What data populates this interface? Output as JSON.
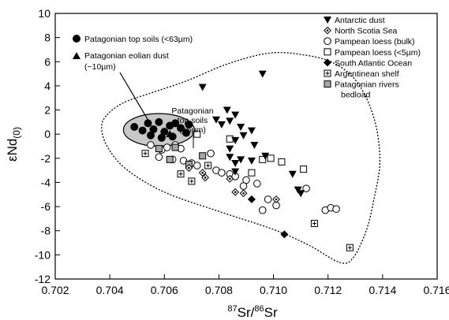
{
  "chart_data": {
    "type": "scatter",
    "title": "",
    "xlabel": "87Sr/86Sr",
    "xlabel_parts": {
      "sup1": "87",
      "base1": "Sr/",
      "sup2": "86",
      "base2": "Sr"
    },
    "ylabel": "εNd(0)",
    "ylabel_parts": {
      "base": "εNd",
      "sub": "(0)"
    },
    "xlim": [
      0.702,
      0.716
    ],
    "ylim": [
      -12,
      10
    ],
    "x_ticks": [
      0.702,
      0.704,
      0.706,
      0.708,
      0.71,
      0.712,
      0.714,
      0.716
    ],
    "x_tick_labels": [
      "0.702",
      "0.704",
      "0.706",
      "0.708",
      "0.710",
      "0.712",
      "0.714",
      "0.716"
    ],
    "y_ticks": [
      10,
      8,
      6,
      4,
      2,
      0,
      -2,
      -4,
      -6,
      -8,
      -10,
      -12
    ],
    "y_tick_labels": [
      "10",
      "8",
      "6",
      "4",
      "2",
      "0",
      "-2",
      "-4",
      "-6",
      "-8",
      "-10",
      "-12"
    ],
    "grid": false,
    "legend_right_position": "top-right",
    "legend_left_position": "top-left",
    "annotations": [
      {
        "id": "patagonian-top-soils-63",
        "text": "Patagonian top soils (<63µm)",
        "marker": "circle-filled"
      },
      {
        "id": "patagonian-eolian-dust",
        "lines": [
          "Patagonian eolian dust",
          "(~10µm)"
        ],
        "marker": "triangle-up"
      },
      {
        "id": "patagonian-top-soils-5",
        "lines": [
          "Patagonian",
          "top soils",
          "(<5µm)"
        ],
        "marker": "none"
      }
    ],
    "series": [
      {
        "name": "Antarctic dust",
        "marker": "triangle-down",
        "points": [
          [
            0.7074,
            3.9
          ],
          [
            0.7079,
            1.2
          ],
          [
            0.7081,
            0.8
          ],
          [
            0.7083,
            2.0
          ],
          [
            0.7084,
            1.1
          ],
          [
            0.7086,
            1.6
          ],
          [
            0.7088,
            0.6
          ],
          [
            0.7089,
            -0.1
          ],
          [
            0.7086,
            -0.5
          ],
          [
            0.7092,
            0.3
          ],
          [
            0.7093,
            -0.9
          ],
          [
            0.7096,
            5.0
          ],
          [
            0.7097,
            -1.8
          ],
          [
            0.7084,
            -1.2
          ],
          [
            0.7084,
            -1.9
          ],
          [
            0.7086,
            -2.4
          ],
          [
            0.7086,
            -3.1
          ],
          [
            0.7092,
            -2.2
          ],
          [
            0.7088,
            -2.1
          ],
          [
            0.7107,
            -3.3
          ],
          [
            0.7109,
            -4.6
          ],
          [
            0.711,
            -4.9
          ]
        ]
      },
      {
        "name": "North Scotia Sea",
        "marker": "diamond-open-dot",
        "points": [
          [
            0.7069,
            -2.8
          ],
          [
            0.7074,
            -3.2
          ],
          [
            0.7075,
            -3.6
          ],
          [
            0.7086,
            -4.8
          ],
          [
            0.7084,
            -3.7
          ],
          [
            0.7089,
            -4.9
          ],
          [
            0.7101,
            -5.4
          ]
        ]
      },
      {
        "name": "Pampean loess (bulk)",
        "marker": "circle-open",
        "points": [
          [
            0.7055,
            -0.9
          ],
          [
            0.7059,
            -1.3
          ],
          [
            0.7061,
            -1.1
          ],
          [
            0.7064,
            -0.9
          ],
          [
            0.7066,
            -1.2
          ],
          [
            0.7058,
            -1.9
          ],
          [
            0.7063,
            -2.1
          ],
          [
            0.7067,
            -2.2
          ],
          [
            0.707,
            -2.4
          ],
          [
            0.7072,
            -2.6
          ],
          [
            0.7077,
            -1.6
          ],
          [
            0.7079,
            -3.0
          ],
          [
            0.7081,
            -3.2
          ],
          [
            0.7084,
            -3.3
          ],
          [
            0.7086,
            -3.5
          ],
          [
            0.709,
            -3.8
          ],
          [
            0.7089,
            -4.3
          ],
          [
            0.7094,
            -4.1
          ],
          [
            0.7096,
            -6.3
          ],
          [
            0.7098,
            -5.4
          ],
          [
            0.7101,
            -5.9
          ],
          [
            0.7112,
            -4.5
          ],
          [
            0.7119,
            -6.3
          ],
          [
            0.7121,
            -6.1
          ],
          [
            0.7123,
            -6.2
          ]
        ]
      },
      {
        "name": "Pampean loess (<5µm)",
        "marker": "square-open",
        "points": [
          [
            0.7072,
            0.0
          ],
          [
            0.7084,
            -0.4
          ],
          [
            0.7092,
            -3.2
          ],
          [
            0.7096,
            -2.1
          ],
          [
            0.7099,
            -2.0
          ],
          [
            0.7103,
            -2.3
          ],
          [
            0.7111,
            -2.9
          ]
        ]
      },
      {
        "name": "South Atlantic Ocean",
        "marker": "diamond-filled",
        "points": [
          [
            0.7092,
            -5.4
          ],
          [
            0.7104,
            -8.3
          ]
        ]
      },
      {
        "name": "Argentinean shelf",
        "marker": "square-cross",
        "points": [
          [
            0.7053,
            -1.6
          ],
          [
            0.7066,
            -3.3
          ],
          [
            0.707,
            -3.9
          ],
          [
            0.7076,
            -2.6
          ],
          [
            0.7115,
            -7.4
          ],
          [
            0.7128,
            -9.4
          ]
        ]
      },
      {
        "name": "Patagonian rivers bedload",
        "marker": "square-gray",
        "points": [
          [
            0.7058,
            -1.2
          ],
          [
            0.7064,
            -1.1
          ],
          [
            0.7062,
            -2.1
          ],
          [
            0.7069,
            -2.5
          ],
          [
            0.7074,
            -1.8
          ]
        ]
      },
      {
        "name": "Patagonian top soils (<63µm)",
        "marker": "circle-filled",
        "points": [
          [
            0.7049,
            0.6
          ],
          [
            0.7052,
            0.3
          ],
          [
            0.7054,
            0.9
          ],
          [
            0.7056,
            0.4
          ],
          [
            0.7058,
            1.0
          ],
          [
            0.706,
            0.2
          ],
          [
            0.7062,
            0.7
          ],
          [
            0.7055,
            -0.1
          ],
          [
            0.7059,
            -0.3
          ],
          [
            0.7064,
            0.9
          ],
          [
            0.7066,
            0.5
          ],
          [
            0.7069,
            0.8
          ],
          [
            0.7068,
            0.1
          ],
          [
            0.7063,
            -0.2
          ]
        ]
      },
      {
        "name": "Patagonian eolian dust (~10µm)",
        "marker": "triangle-up",
        "points": [
          [
            0.7062,
            0.0
          ]
        ]
      }
    ],
    "regions": [
      {
        "name": "patagonian-top-soils-ellipse",
        "cx": 0.7058,
        "cy": 0.35,
        "rx": 0.0013,
        "ry": 1.35
      },
      {
        "name": "dotted-envelope",
        "points": [
          [
            0.7039,
            1.6
          ],
          [
            0.7045,
            2.6
          ],
          [
            0.7055,
            3.4
          ],
          [
            0.7068,
            4.4
          ],
          [
            0.7083,
            5.8
          ],
          [
            0.7098,
            6.7
          ],
          [
            0.711,
            6.6
          ],
          [
            0.7122,
            5.9
          ],
          [
            0.7131,
            4.2
          ],
          [
            0.7137,
            1.2
          ],
          [
            0.7139,
            -2.2
          ],
          [
            0.7137,
            -5.2
          ],
          [
            0.7134,
            -8.0
          ],
          [
            0.7129,
            -10.3
          ],
          [
            0.7124,
            -10.6
          ],
          [
            0.7113,
            -9.2
          ],
          [
            0.71,
            -7.9
          ],
          [
            0.708,
            -6.4
          ],
          [
            0.706,
            -4.8
          ],
          [
            0.7046,
            -2.9
          ],
          [
            0.7039,
            -1.0
          ],
          [
            0.7037,
            0.6
          ]
        ]
      }
    ]
  }
}
